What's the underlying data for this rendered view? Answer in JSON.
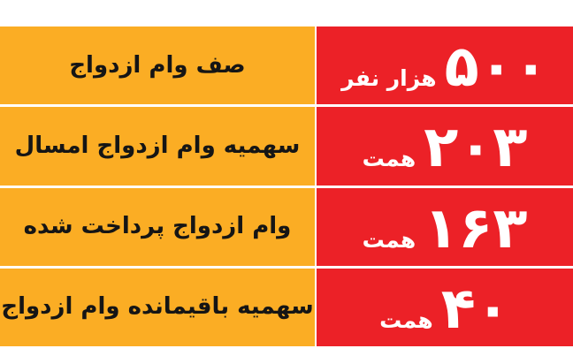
{
  "colors": {
    "orange": "#FBAD24",
    "red": "#EC2127",
    "label_text": "#151515",
    "value_text": "#FFFFFF",
    "background": "#FFFFFF"
  },
  "chart_data": {
    "type": "table",
    "direction": "rtl",
    "columns": [
      "label",
      "value",
      "unit"
    ],
    "rows": [
      {
        "label": "صف وام ازدواج",
        "value": 500,
        "value_display": "۵۰۰",
        "unit": "هزار نفر"
      },
      {
        "label": "سهمیه وام ازدواج امسال",
        "value": 203,
        "value_display": "۲۰۳",
        "unit": "همت"
      },
      {
        "label": "وام ازدواج پرداخت شده",
        "value": 163,
        "value_display": "۱۶۳",
        "unit": "همت"
      },
      {
        "label": "سهمیه باقیمانده وام ازدواج",
        "value": 40,
        "value_display": "۴۰",
        "unit": "همت"
      }
    ],
    "layout": {
      "label_column_side": "left",
      "value_column_side": "right",
      "row_count": 4,
      "row_separator_color": "#FFFFFF"
    }
  }
}
